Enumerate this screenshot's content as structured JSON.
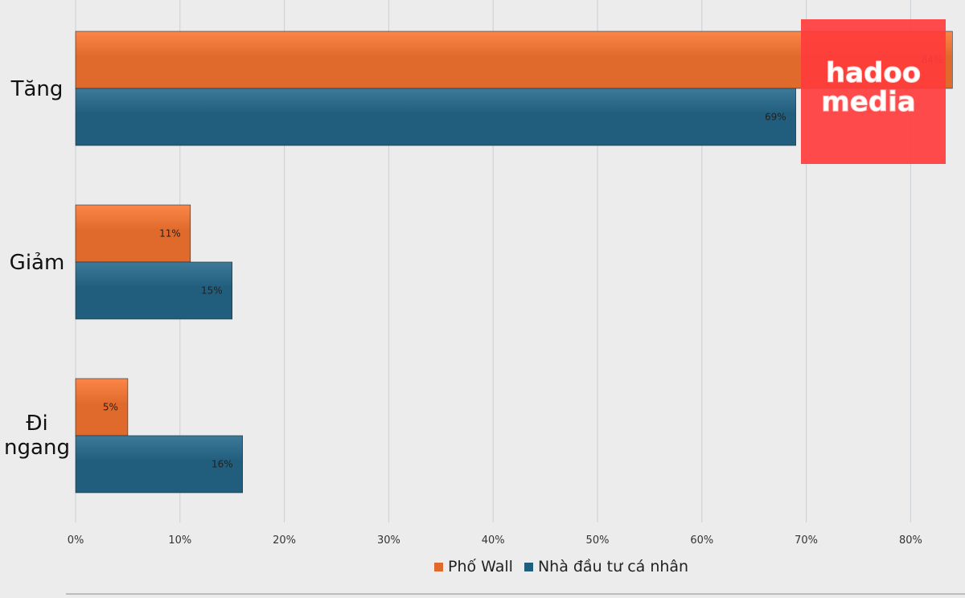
{
  "chart_data": {
    "type": "bar",
    "orientation": "horizontal",
    "categories": [
      "Tăng",
      "Giảm",
      "Đi ngang"
    ],
    "series": [
      {
        "name": "Phố Wall",
        "values": [
          84,
          11,
          5
        ],
        "color": "#e06a2c",
        "labels": [
          "84%",
          "11%",
          "5%"
        ]
      },
      {
        "name": "Nhà đầu tư cá nhân",
        "values": [
          69,
          15,
          16
        ],
        "color": "#215d7c",
        "labels": [
          "69%",
          "15%",
          "16%"
        ]
      }
    ],
    "xlim": [
      0,
      80
    ],
    "xticks": [
      "0%",
      "10%",
      "20%",
      "30%",
      "40%",
      "50%",
      "60%",
      "70%",
      "80%"
    ],
    "grid": true,
    "legend": "bottom"
  },
  "watermark": {
    "text": "hadoo media",
    "color": "#ff3c3c"
  }
}
